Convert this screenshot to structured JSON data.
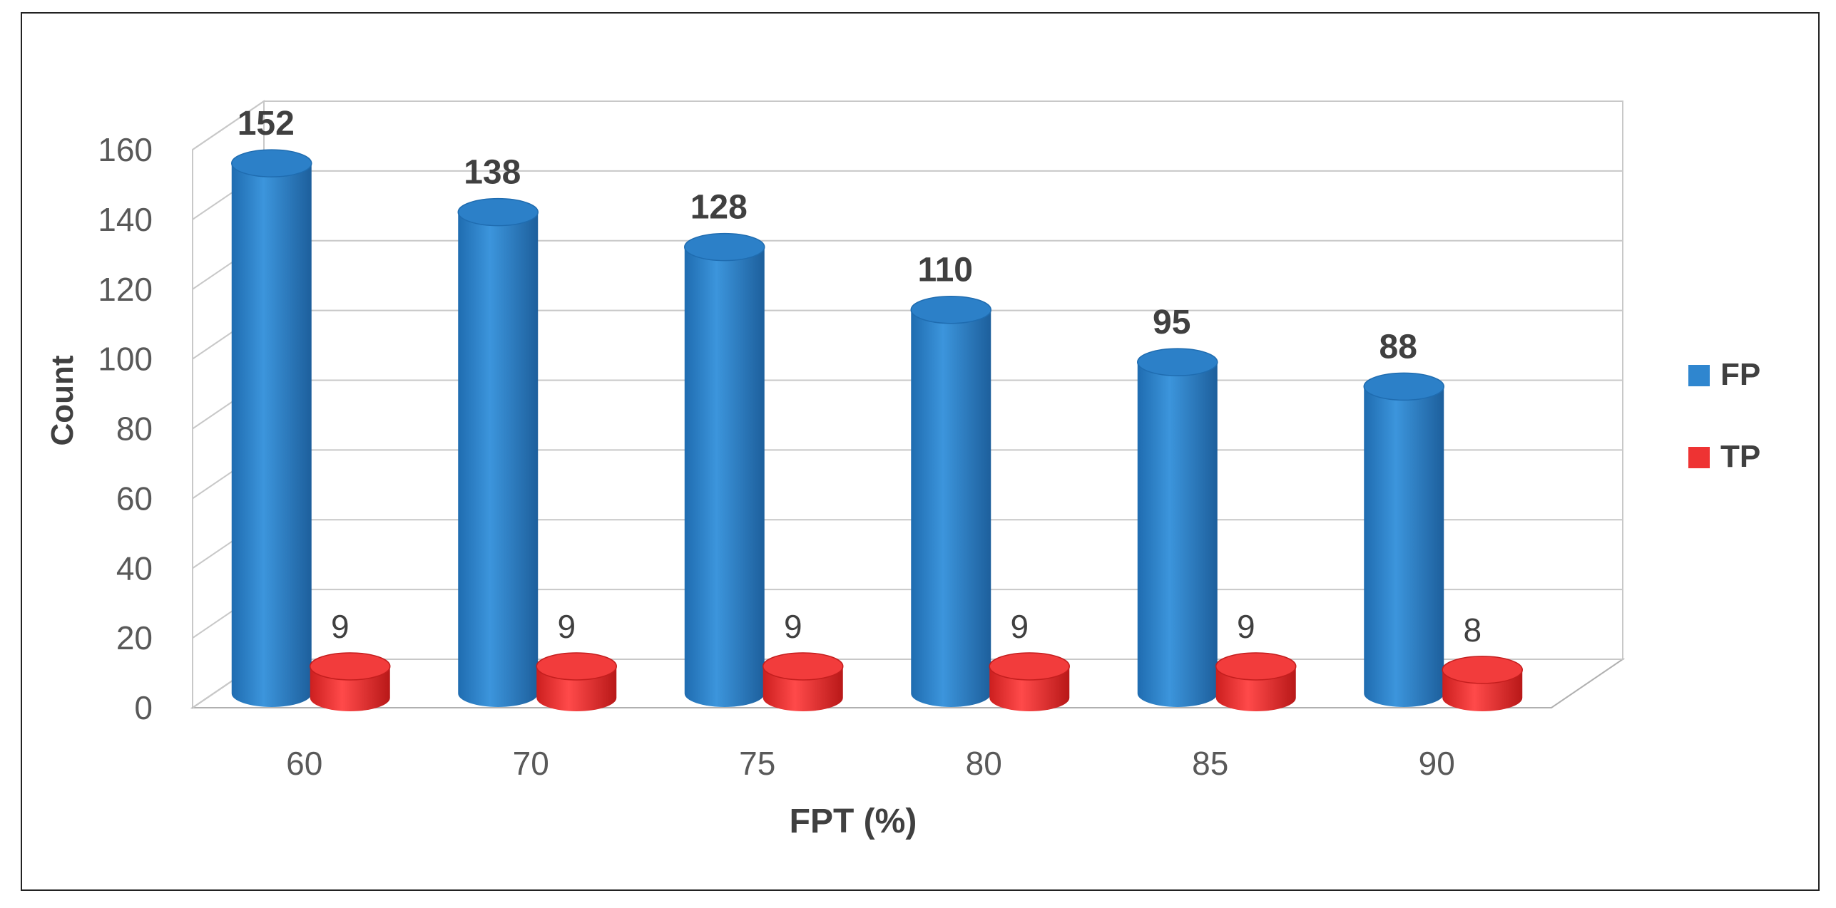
{
  "chart_data": {
    "type": "bar",
    "style": "3d-cylinder",
    "title": "",
    "xlabel": "FPT (%)",
    "ylabel": "Count",
    "categories": [
      "60",
      "70",
      "75",
      "80",
      "85",
      "90"
    ],
    "series": [
      {
        "name": "FP",
        "values": [
          152,
          138,
          128,
          110,
          95,
          88
        ],
        "color": "#2f86cf"
      },
      {
        "name": "TP",
        "values": [
          9,
          9,
          9,
          9,
          9,
          8
        ],
        "color": "#ee3333"
      }
    ],
    "ylim": [
      0,
      160
    ],
    "yticks": [
      "0",
      "20",
      "40",
      "60",
      "80",
      "100",
      "120",
      "140",
      "160"
    ],
    "grid": true,
    "legend_position": "right"
  }
}
